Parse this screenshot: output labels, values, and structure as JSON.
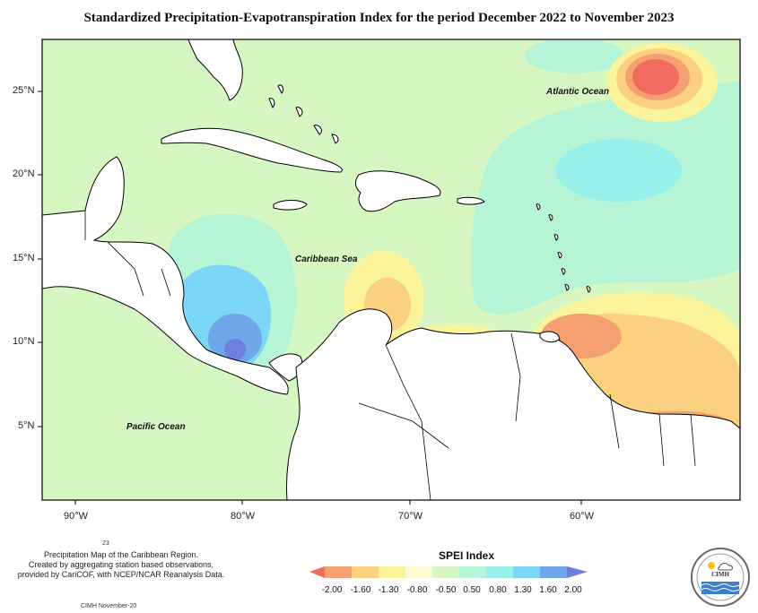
{
  "title": "Standardized Precipitation-Evapotranspiration Index for the period December 2022 to November 2023",
  "map": {
    "latitude_labels": [
      "25°N",
      "20°N",
      "15°N",
      "10°N",
      "5°N"
    ],
    "longitude_labels": [
      "90°W",
      "80°W",
      "70°W",
      "60°W"
    ],
    "place_labels": {
      "atlantic": "Atlantic Ocean",
      "caribbean": "Caribbean Sea",
      "pacific": "Pacific Ocean"
    }
  },
  "credits": {
    "number": "23",
    "line1": "Precipitation Map of the Caribbean Region.",
    "line2": "Created by aggregating station based observations,",
    "line3": "provided by CariCOF, with NCEP/NCAR Reanalysis Data.",
    "footer": "CIMH November-20"
  },
  "legend": {
    "title": "SPEI Index",
    "ticks": [
      "-2.00",
      "-1.60",
      "-1.30",
      "-0.80",
      "-0.50",
      "0.50",
      "0.80",
      "1.30",
      "1.60",
      "2.00"
    ],
    "colors": [
      "#f16b5f",
      "#f5a070",
      "#fbd07f",
      "#fcf49a",
      "#fcfcd0",
      "#d7f7c2",
      "#b5f5d6",
      "#97f0ea",
      "#7cd6f7",
      "#6ea8ea",
      "#6f7fdb"
    ]
  },
  "logo": {
    "text": "CIMH"
  }
}
